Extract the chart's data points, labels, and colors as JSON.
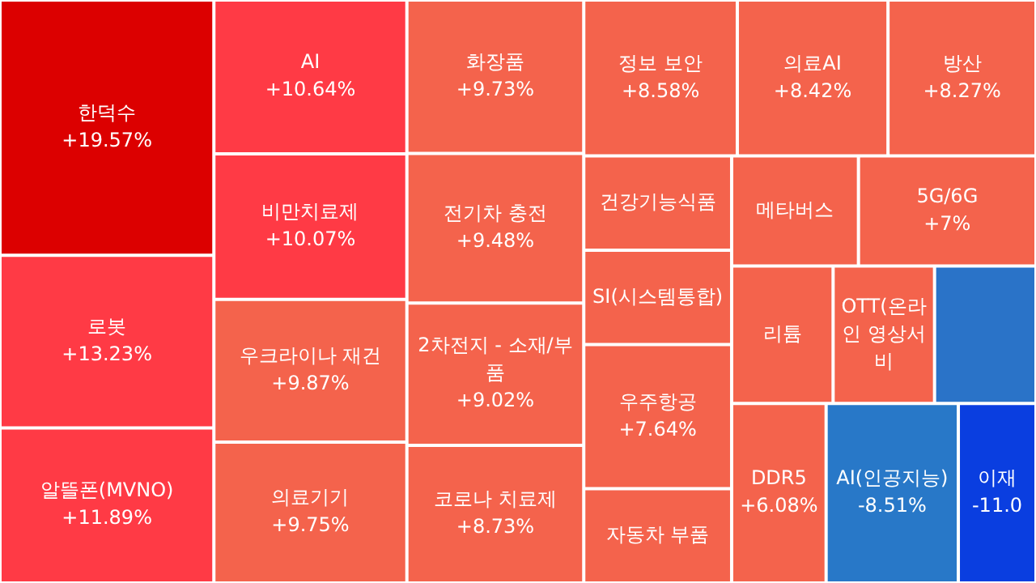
{
  "chart_data": {
    "type": "other",
    "categories": [
      "한덕수",
      "로봇",
      "알뜰폰(MVNO)",
      "AI",
      "비만치료제",
      "우크라이나 재건",
      "의료기기",
      "화장품",
      "전기차 충전",
      "2차전지 - 소재/부품",
      "코로나 치료제",
      "정보 보안",
      "의료AI",
      "방산",
      "건강기능식품",
      "SI(시스템통합)",
      "우주항공",
      "자동차 부품",
      "메타버스",
      "5G/6G",
      "리튬",
      "OTT(온라인 영상서비",
      null,
      "DDR5",
      "AI(인공지능)",
      "이재"
    ],
    "values": [
      19.57,
      13.23,
      11.89,
      10.64,
      10.07,
      9.87,
      9.75,
      9.73,
      9.48,
      9.02,
      8.73,
      8.58,
      8.42,
      8.27,
      null,
      null,
      7.64,
      null,
      null,
      7,
      null,
      null,
      null,
      6.08,
      -8.51,
      null
    ],
    "value_labels": [
      "+19.57%",
      "+13.23%",
      "+11.89%",
      "+10.64%",
      "+10.07%",
      "+9.87%",
      "+9.75%",
      "+9.73%",
      "+9.48%",
      "+9.02%",
      "+8.73%",
      "+8.58%",
      "+8.42%",
      "+8.27%",
      null,
      null,
      "+7.64%",
      null,
      null,
      "+7%",
      null,
      null,
      null,
      "+6.08%",
      "-8.51%",
      "-11.0"
    ],
    "colors": [
      "#dc0000",
      "#ff3a45",
      "#ff3a45",
      "#ff3a45",
      "#ff3a45",
      "#f4634c",
      "#f4634c",
      "#f4634c",
      "#f4634c",
      "#f4634c",
      "#f4634c",
      "#f4634c",
      "#f4634c",
      "#f4634c",
      "#f4634c",
      "#f4634c",
      "#f4634c",
      "#f4634c",
      "#f4634c",
      "#f4634c",
      "#f4634c",
      "#f4634c",
      "#2a73c8",
      "#f4634c",
      "#2878c8",
      "#0a3ee0"
    ]
  }
}
